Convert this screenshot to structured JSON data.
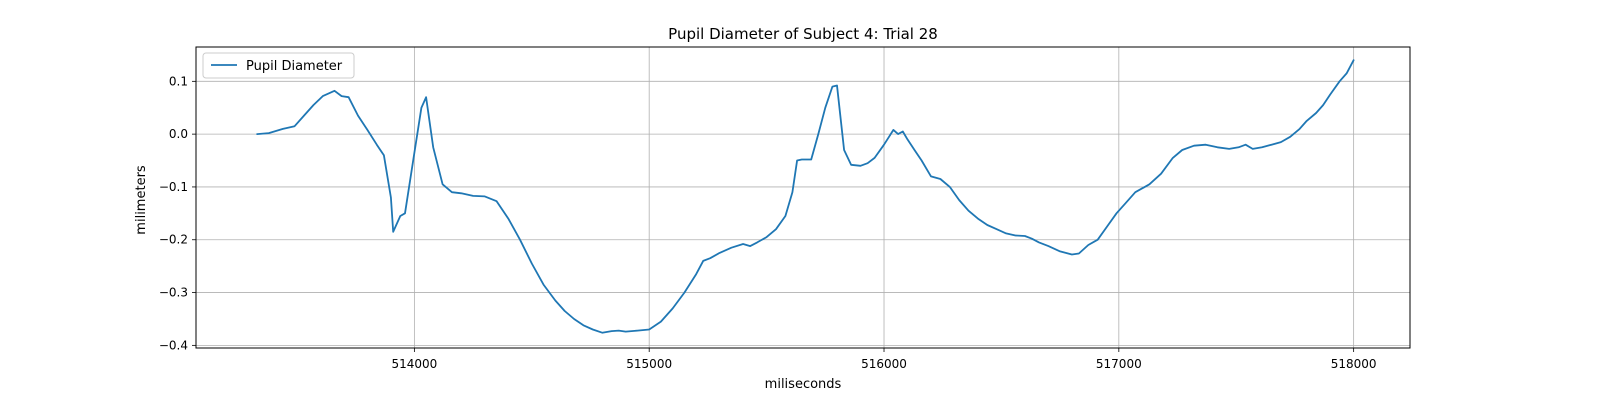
{
  "chart_data": {
    "type": "line",
    "title": "Pupil Diameter of Subject 4: Trial 28",
    "xlabel": "miliseconds",
    "ylabel": "milimeters",
    "xlim": [
      513070,
      518240
    ],
    "ylim": [
      -0.405,
      0.165
    ],
    "xticks": [
      514000,
      515000,
      516000,
      517000,
      518000
    ],
    "xtick_labels": [
      "514000",
      "515000",
      "516000",
      "517000",
      "518000"
    ],
    "yticks": [
      0.1,
      0.0,
      -0.1,
      -0.2,
      -0.3,
      -0.4
    ],
    "ytick_labels": [
      "0.1",
      "0.0",
      "−0.1",
      "−0.2",
      "−0.3",
      "−0.4"
    ],
    "grid": true,
    "legend": {
      "position": "upper left",
      "entries": [
        "Pupil Diameter"
      ]
    },
    "series": [
      {
        "name": "Pupil Diameter",
        "color": "#1f77b4",
        "x": [
          513330,
          513380,
          513440,
          513490,
          513530,
          513570,
          513610,
          513640,
          513660,
          513690,
          513720,
          513760,
          513800,
          513840,
          513870,
          513900,
          513910,
          513940,
          513960,
          514000,
          514030,
          514050,
          514080,
          514120,
          514160,
          514200,
          514250,
          514300,
          514350,
          514400,
          514450,
          514500,
          514550,
          514600,
          514640,
          514680,
          514720,
          514760,
          514800,
          514840,
          514870,
          514900,
          514950,
          515000,
          515050,
          515100,
          515150,
          515200,
          515230,
          515260,
          515300,
          515350,
          515400,
          515430,
          515460,
          515500,
          515540,
          515580,
          515610,
          515630,
          515650,
          515690,
          515720,
          515750,
          515780,
          515800,
          515830,
          515860,
          515900,
          515930,
          515960,
          516000,
          516040,
          516060,
          516080,
          516100,
          516130,
          516160,
          516200,
          516240,
          516280,
          516320,
          516360,
          516400,
          516440,
          516480,
          516520,
          516560,
          516600,
          516630,
          516660,
          516700,
          516750,
          516800,
          516830,
          516870,
          516910,
          516950,
          516990,
          517030,
          517070,
          517090,
          517130,
          517180,
          517230,
          517270,
          517320,
          517370,
          517420,
          517470,
          517510,
          517540,
          517570,
          517610,
          517650,
          517690,
          517730,
          517770,
          517800,
          517840,
          517870,
          517900,
          517940,
          517970,
          518000
        ],
        "y": [
          0.0,
          0.002,
          0.01,
          0.015,
          0.035,
          0.055,
          0.072,
          0.078,
          0.082,
          0.072,
          0.07,
          0.035,
          0.008,
          -0.02,
          -0.04,
          -0.12,
          -0.185,
          -0.155,
          -0.15,
          -0.035,
          0.05,
          0.07,
          -0.025,
          -0.095,
          -0.11,
          -0.112,
          -0.117,
          -0.118,
          -0.127,
          -0.16,
          -0.2,
          -0.245,
          -0.285,
          -0.315,
          -0.335,
          -0.35,
          -0.362,
          -0.37,
          -0.376,
          -0.373,
          -0.372,
          -0.374,
          -0.372,
          -0.37,
          -0.355,
          -0.33,
          -0.3,
          -0.265,
          -0.24,
          -0.235,
          -0.225,
          -0.215,
          -0.208,
          -0.212,
          -0.205,
          -0.195,
          -0.18,
          -0.155,
          -0.11,
          -0.05,
          -0.048,
          -0.048,
          0.0,
          0.05,
          0.09,
          0.092,
          -0.03,
          -0.058,
          -0.06,
          -0.055,
          -0.045,
          -0.02,
          0.008,
          0.0,
          0.005,
          -0.01,
          -0.03,
          -0.05,
          -0.08,
          -0.085,
          -0.1,
          -0.125,
          -0.145,
          -0.16,
          -0.172,
          -0.18,
          -0.188,
          -0.192,
          -0.193,
          -0.198,
          -0.205,
          -0.212,
          -0.222,
          -0.228,
          -0.226,
          -0.21,
          -0.2,
          -0.175,
          -0.15,
          -0.13,
          -0.11,
          -0.105,
          -0.095,
          -0.075,
          -0.045,
          -0.03,
          -0.022,
          -0.02,
          -0.025,
          -0.028,
          -0.025,
          -0.02,
          -0.028,
          -0.025,
          -0.02,
          -0.015,
          -0.005,
          0.01,
          0.025,
          0.04,
          0.055,
          0.075,
          0.1,
          0.115,
          0.14
        ]
      }
    ]
  }
}
